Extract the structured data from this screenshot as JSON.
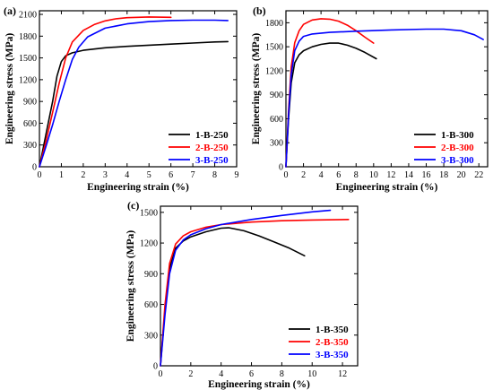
{
  "chart_data": [
    {
      "type": "line",
      "panel_label": "(a)",
      "xlabel": "Engineering strain (%)",
      "ylabel": "Engineering stress (MPa)",
      "xlim": [
        0,
        9
      ],
      "ylim": [
        0,
        2150
      ],
      "xticks": [
        0,
        1,
        2,
        3,
        4,
        5,
        6,
        7,
        8,
        9
      ],
      "yticks": [
        0,
        300,
        600,
        900,
        1200,
        1500,
        1800,
        2100
      ],
      "legend_position": "bottom-right",
      "series": [
        {
          "name": "1-B-250",
          "color": "#000000",
          "x": [
            0,
            0.3,
            0.6,
            0.8,
            1.0,
            1.2,
            1.5,
            2.0,
            3.0,
            4.0,
            5.0,
            6.0,
            7.0,
            8.0,
            8.6
          ],
          "y": [
            0,
            450,
            900,
            1250,
            1450,
            1530,
            1570,
            1605,
            1640,
            1660,
            1675,
            1690,
            1705,
            1720,
            1725
          ]
        },
        {
          "name": "2-B-250",
          "color": "#ff0000",
          "x": [
            0,
            0.3,
            0.6,
            0.9,
            1.2,
            1.5,
            2.0,
            2.5,
            3.0,
            3.5,
            4.0,
            5.0,
            6.0
          ],
          "y": [
            0,
            350,
            750,
            1150,
            1500,
            1720,
            1880,
            1960,
            2010,
            2040,
            2055,
            2065,
            2060
          ]
        },
        {
          "name": "3-B-250",
          "color": "#0000ff",
          "x": [
            0,
            0.3,
            0.6,
            0.9,
            1.2,
            1.5,
            1.8,
            2.2,
            3.0,
            4.0,
            5.0,
            6.0,
            7.0,
            8.0,
            8.6
          ],
          "y": [
            0,
            280,
            580,
            900,
            1200,
            1480,
            1650,
            1790,
            1910,
            1970,
            2000,
            2015,
            2020,
            2020,
            2015
          ]
        }
      ]
    },
    {
      "type": "line",
      "panel_label": "(b)",
      "xlabel": "Engineering strain (%)",
      "ylabel": "Engineering stress (MPa)",
      "xlim": [
        0,
        23
      ],
      "ylim": [
        0,
        1950
      ],
      "xticks": [
        0,
        2,
        4,
        6,
        8,
        10,
        12,
        14,
        16,
        18,
        20,
        22
      ],
      "yticks": [
        0,
        300,
        600,
        900,
        1200,
        1500,
        1800
      ],
      "legend_position": "bottom-right",
      "series": [
        {
          "name": "1-B-300",
          "color": "#000000",
          "x": [
            0,
            0.3,
            0.6,
            1.0,
            1.5,
            2.0,
            3.0,
            4.0,
            5.0,
            6.0,
            7.0,
            8.0,
            9.0,
            10.3
          ],
          "y": [
            0,
            600,
            1050,
            1300,
            1400,
            1450,
            1500,
            1530,
            1545,
            1545,
            1520,
            1480,
            1430,
            1350
          ]
        },
        {
          "name": "2-B-300",
          "color": "#ff0000",
          "x": [
            0,
            0.3,
            0.6,
            1.0,
            1.5,
            2.0,
            3.0,
            4.0,
            5.0,
            6.0,
            7.0,
            8.0,
            9.0,
            10.0
          ],
          "y": [
            0,
            700,
            1250,
            1550,
            1700,
            1780,
            1835,
            1850,
            1845,
            1820,
            1770,
            1700,
            1620,
            1545
          ]
        },
        {
          "name": "3-B-300",
          "color": "#0000ff",
          "x": [
            0,
            0.3,
            0.6,
            1.0,
            1.5,
            2.0,
            3.0,
            5.0,
            8.0,
            12.0,
            16.0,
            18.0,
            20.0,
            21.5,
            22.5
          ],
          "y": [
            0,
            650,
            1150,
            1450,
            1570,
            1630,
            1660,
            1680,
            1695,
            1710,
            1720,
            1720,
            1700,
            1650,
            1590
          ]
        }
      ]
    },
    {
      "type": "line",
      "panel_label": "(c)",
      "xlabel": "Engineering strain (%)",
      "ylabel": "Engineering stress (MPa)",
      "xlim": [
        0,
        13
      ],
      "ylim": [
        0,
        1560
      ],
      "xticks": [
        0,
        2,
        4,
        6,
        8,
        10,
        12
      ],
      "yticks": [
        0,
        300,
        600,
        900,
        1200,
        1500
      ],
      "legend_position": "bottom-right",
      "series": [
        {
          "name": "1-B-350",
          "color": "#000000",
          "x": [
            0,
            0.3,
            0.6,
            1.0,
            1.5,
            2.0,
            3.0,
            4.0,
            4.5,
            5.5,
            6.5,
            7.5,
            8.5,
            9.5
          ],
          "y": [
            0,
            550,
            950,
            1150,
            1220,
            1260,
            1310,
            1345,
            1350,
            1320,
            1270,
            1210,
            1150,
            1075
          ]
        },
        {
          "name": "2-B-350",
          "color": "#ff0000",
          "x": [
            0,
            0.3,
            0.6,
            1.0,
            1.5,
            2.0,
            3.0,
            4.0,
            6.0,
            8.0,
            10.0,
            12.4
          ],
          "y": [
            0,
            600,
            1000,
            1190,
            1270,
            1310,
            1355,
            1380,
            1405,
            1418,
            1425,
            1430
          ]
        },
        {
          "name": "3-B-350",
          "color": "#0000ff",
          "x": [
            0,
            0.3,
            0.6,
            1.0,
            1.5,
            2.0,
            3.0,
            4.0,
            6.0,
            8.0,
            10.0,
            11.2
          ],
          "y": [
            0,
            500,
            900,
            1130,
            1230,
            1280,
            1340,
            1380,
            1430,
            1470,
            1505,
            1520
          ]
        }
      ]
    }
  ]
}
